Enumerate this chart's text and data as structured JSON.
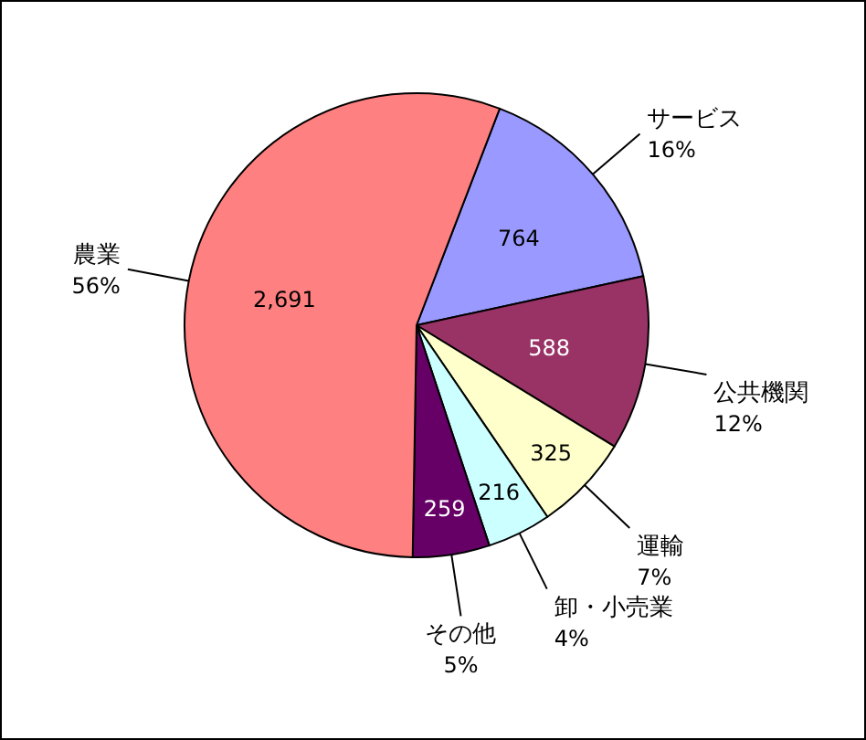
{
  "chart_data": {
    "type": "pie",
    "categories": [
      "サービス",
      "公共機関",
      "運輸",
      "卸・小売業",
      "その他",
      "農業"
    ],
    "values": [
      764,
      588,
      325,
      216,
      259,
      2691
    ],
    "value_labels": [
      "764",
      "588",
      "325",
      "216",
      "259",
      "2,691"
    ],
    "colors": [
      "#9999ff",
      "#993366",
      "#ffffcc",
      "#ccffff",
      "#660066",
      "#ff8080"
    ],
    "annotations": [
      "16%",
      "12%",
      "7%",
      "4%",
      "5%",
      "56%"
    ]
  }
}
